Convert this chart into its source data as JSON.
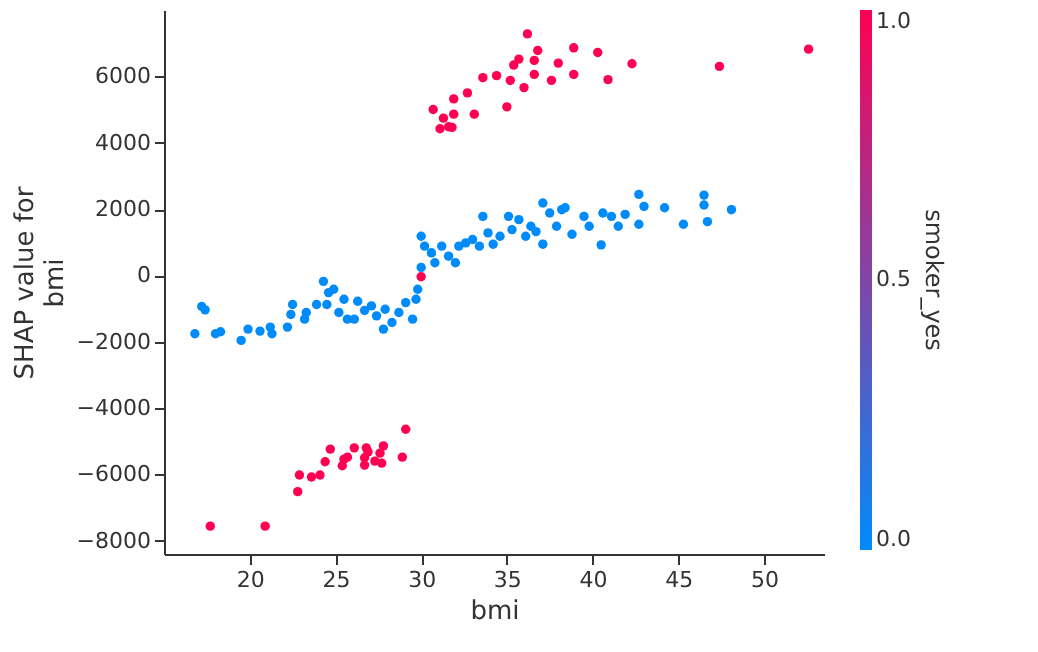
{
  "chart_data": {
    "type": "scatter",
    "xlabel": "bmi",
    "ylabel": "SHAP value for\nbmi",
    "clabel": "smoker_yes",
    "xlim": [
      15,
      53.5
    ],
    "xticks": [
      20,
      25,
      30,
      35,
      40,
      45,
      50
    ],
    "ylim": [
      -8400,
      8000
    ],
    "yticks": [
      -8000,
      -6000,
      -4000,
      -2000,
      0,
      2000,
      4000,
      6000
    ],
    "clim": [
      0,
      1
    ],
    "cticks": [
      {
        "value": 0,
        "label": "0.0"
      },
      0.5,
      {
        "value": 1,
        "label": "1.0"
      }
    ],
    "grid": false,
    "marker": "circle",
    "x": [
      16.8,
      17.2,
      17.4,
      18.0,
      18.3,
      19.5,
      19.9,
      20.6,
      21.2,
      21.3,
      22.2,
      22.4,
      22.5,
      23.2,
      23.3,
      23.9,
      24.3,
      24.6,
      24.5,
      24.9,
      25.2,
      25.5,
      25.7,
      26.1,
      26.3,
      26.7,
      27.1,
      27.4,
      27.8,
      27.9,
      28.3,
      28.7,
      29.1,
      29.5,
      29.7,
      29.8,
      30.0,
      30.0,
      30.2,
      30.6,
      30.8,
      31.2,
      31.6,
      32.0,
      32.2,
      32.6,
      33.0,
      33.4,
      33.6,
      33.9,
      34.2,
      34.6,
      35.1,
      35.3,
      35.7,
      36.1,
      36.4,
      36.7,
      37.1,
      37.1,
      37.5,
      37.9,
      38.2,
      38.4,
      38.8,
      39.5,
      39.8,
      40.5,
      40.6,
      41.1,
      41.5,
      41.9,
      42.7,
      42.7,
      43.0,
      44.2,
      45.3,
      46.5,
      46.5,
      46.7,
      48.1,
      36.2,
      36.8,
      38.9,
      40.3,
      52.6,
      35.7,
      35.4,
      36.6,
      38.0,
      42.3,
      47.4,
      33.6,
      34.4,
      35.2,
      36.6,
      38.9,
      37.6,
      40.9,
      36.0,
      32.7,
      31.9,
      30.7,
      35.0,
      31.3,
      31.9,
      33.1,
      31.1,
      31.6,
      31.8,
      30.0,
      17.7,
      20.9,
      22.8,
      22.9,
      23.6,
      24.1,
      24.4,
      24.7,
      25.4,
      25.5,
      25.7,
      26.1,
      26.7,
      26.7,
      26.8,
      26.9,
      27.3,
      27.6,
      27.8,
      27.7,
      28.9,
      29.1
    ],
    "values": [
      -1760,
      -940,
      -1040,
      -1760,
      -1700,
      -1960,
      -1620,
      -1680,
      -1560,
      -1760,
      -1560,
      -1180,
      -880,
      -1320,
      -1120,
      -880,
      -180,
      -520,
      -880,
      -420,
      -1120,
      -720,
      -1320,
      -1320,
      -780,
      -1060,
      -920,
      -1220,
      -1620,
      -1020,
      -1420,
      -1120,
      -820,
      -1320,
      -720,
      -420,
      240,
      1180,
      880,
      680,
      380,
      880,
      580,
      380,
      880,
      980,
      1080,
      880,
      1780,
      1280,
      940,
      1180,
      1780,
      1380,
      1680,
      1180,
      1480,
      1320,
      2180,
      940,
      1880,
      1480,
      1980,
      2040,
      1240,
      1780,
      1480,
      920,
      1880,
      1780,
      1480,
      1840,
      2440,
      1540,
      2080,
      2040,
      1540,
      2420,
      2120,
      1620,
      1980,
      7280,
      6780,
      6860,
      6720,
      6820,
      6520,
      6340,
      6480,
      6400,
      6380,
      6300,
      5960,
      6020,
      5880,
      6060,
      6060,
      5880,
      5900,
      5660,
      5500,
      5320,
      5000,
      5080,
      4740,
      4860,
      4860,
      4420,
      4480,
      4460,
      -40,
      -7560,
      -7560,
      -6520,
      -6020,
      -6080,
      -6020,
      -5620,
      -5240,
      -5740,
      -5540,
      -5480,
      -5200,
      -5500,
      -5720,
      -5200,
      -5320,
      -5600,
      -5360,
      -5140,
      -5660,
      -5480,
      -4640
    ],
    "cvalues": [
      0,
      0,
      0,
      0,
      0,
      0,
      0,
      0,
      0,
      0,
      0,
      0,
      0,
      0,
      0,
      0,
      0,
      0,
      0,
      0,
      0,
      0,
      0,
      0,
      0,
      0,
      0,
      0,
      0,
      0,
      0,
      0,
      0,
      0,
      0,
      0,
      0,
      0,
      0,
      0,
      0,
      0,
      0,
      0,
      0,
      0,
      0,
      0,
      0,
      0,
      0,
      0,
      0,
      0,
      0,
      0,
      0,
      0,
      0,
      0,
      0,
      0,
      0,
      0,
      0,
      0,
      0,
      0,
      0,
      0,
      0,
      0,
      0,
      0,
      0,
      0,
      0,
      0,
      0,
      0,
      0,
      1,
      1,
      1,
      1,
      1,
      1,
      1,
      1,
      1,
      1,
      1,
      1,
      1,
      1,
      1,
      1,
      1,
      1,
      1,
      1,
      1,
      1,
      1,
      1,
      1,
      1,
      1,
      1,
      1,
      1,
      1,
      1,
      1,
      1,
      1,
      1,
      1,
      1,
      1,
      1,
      1,
      1,
      1,
      1,
      1,
      1,
      1,
      1,
      1,
      1,
      1,
      1
    ],
    "colors": [
      "#008bfb",
      "#008bfb",
      "#008bfb",
      "#008bfb",
      "#008bfb",
      "#008bfb",
      "#008bfb",
      "#008bfb",
      "#008bfb",
      "#008bfb",
      "#008bfb",
      "#008bfb",
      "#008bfb",
      "#008bfb",
      "#008bfb",
      "#008bfb",
      "#008bfb",
      "#008bfb",
      "#008bfb",
      "#008bfb",
      "#008bfb",
      "#008bfb",
      "#008bfb",
      "#008bfb",
      "#008bfb",
      "#008bfb",
      "#008bfb",
      "#008bfb",
      "#008bfb",
      "#008bfb",
      "#008bfb",
      "#008bfb",
      "#008bfb",
      "#008bfb",
      "#008bfb",
      "#008bfb",
      "#008bfb",
      "#008bfb",
      "#008bfb",
      "#008bfb",
      "#008bfb",
      "#008bfb",
      "#008bfb",
      "#008bfb",
      "#008bfb",
      "#008bfb",
      "#008bfb",
      "#008bfb",
      "#008bfb",
      "#008bfb",
      "#008bfb",
      "#008bfb",
      "#008bfb",
      "#008bfb",
      "#008bfb",
      "#008bfb",
      "#008bfb",
      "#008bfb",
      "#008bfb",
      "#008bfb",
      "#008bfb",
      "#008bfb",
      "#008bfb",
      "#008bfb",
      "#008bfb",
      "#008bfb",
      "#008bfb",
      "#008bfb",
      "#008bfb",
      "#008bfb",
      "#008bfb",
      "#008bfb",
      "#008bfb",
      "#008bfb",
      "#008bfb",
      "#008bfb",
      "#008bfb",
      "#008bfb",
      "#008bfb",
      "#008bfb",
      "#008bfb",
      "#ff0052",
      "#ff0052",
      "#ff0052",
      "#ff0052",
      "#ff0052",
      "#ff0052",
      "#ff0052",
      "#ff0052",
      "#ff0052",
      "#ff0052",
      "#ff0052",
      "#ff0052",
      "#ff0052",
      "#ff0052",
      "#ff0052",
      "#ff0052",
      "#ff0052",
      "#ff0052",
      "#ff0052",
      "#ff0052",
      "#ff0052",
      "#ff0052",
      "#ff0052",
      "#ff0052",
      "#ff0052",
      "#ff0052",
      "#ff0052",
      "#ff0052",
      "#ff0052",
      "#ff0052",
      "#ff0052",
      "#ff0052",
      "#ff0052",
      "#ff0052",
      "#ff0052",
      "#ff0052",
      "#ff0052",
      "#ff0052",
      "#ff0052",
      "#ff0052",
      "#ff0052",
      "#ff0052",
      "#ff0052",
      "#ff0052",
      "#ff0052",
      "#ff0052",
      "#ff0052",
      "#ff0052",
      "#ff0052",
      "#ff0052",
      "#ff0052",
      "#ff0052"
    ]
  }
}
